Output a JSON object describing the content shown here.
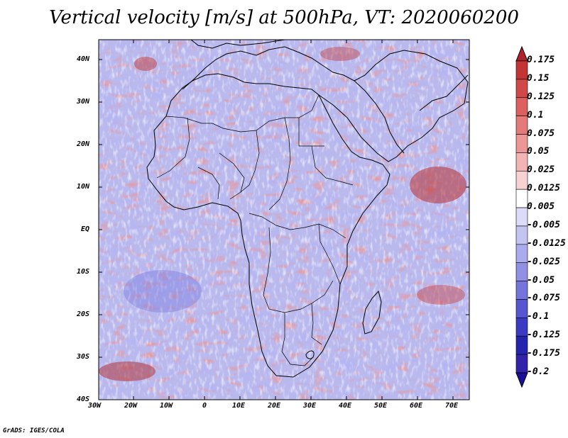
{
  "title": "Vertical velocity [m/s] at 500hPa, VT: 2020060200",
  "footer": "GrADS: IGES/COLA",
  "map": {
    "region": "Africa",
    "lon_range": [
      "30W",
      "75E"
    ],
    "lat_range": [
      "40S",
      "45N"
    ],
    "lat_labels": [
      "40N",
      "30N",
      "20N",
      "10N",
      "EQ",
      "10S",
      "20S",
      "30S",
      "40S"
    ],
    "lon_labels": [
      "30W",
      "20W",
      "10W",
      "0",
      "10E",
      "20E",
      "30E",
      "40E",
      "50E",
      "60E",
      "70E"
    ]
  },
  "colorbar": {
    "labels": [
      "0.175",
      "0.15",
      "0.125",
      "0.1",
      "0.075",
      "0.05",
      "0.025",
      "0.0125",
      "0.005",
      "-0.005",
      "-0.0125",
      "-0.025",
      "-0.05",
      "-0.075",
      "-0.1",
      "-0.125",
      "-0.175",
      "-0.2"
    ],
    "colors": [
      "#b0202e",
      "#c33434",
      "#d04848",
      "#dc6060",
      "#e47a7a",
      "#ec9696",
      "#f2b4b4",
      "#f8d2d2",
      "#ffffff",
      "#dcdcf8",
      "#c4c4f2",
      "#aaaaec",
      "#9090e4",
      "#7474dc",
      "#5656d0",
      "#3a3ac2",
      "#2424ae",
      "#3322aa",
      "#1a0f96"
    ]
  }
}
